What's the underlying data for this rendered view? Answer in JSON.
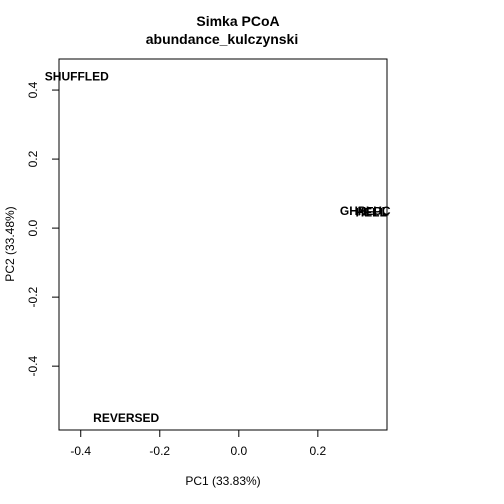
{
  "chart_data": {
    "type": "scatter",
    "title": "Simka PCoA",
    "subtitle": "abundance_kulczynski",
    "xlabel": "PC1 (33.83%)",
    "ylabel": "PC2 (33.48%)",
    "xlim": [
      -0.455,
      0.375
    ],
    "ylim": [
      -0.585,
      0.49
    ],
    "xticks": [
      -0.4,
      -0.2,
      0.0,
      0.2
    ],
    "yticks": [
      -0.4,
      -0.2,
      0.0,
      0.2,
      0.4
    ],
    "xtick_labels": [
      "-0.4",
      "-0.2",
      "0.0",
      "0.2"
    ],
    "ytick_labels": [
      "-0.4",
      "-0.2",
      "0.0",
      "0.2",
      "0.4"
    ],
    "grid": false,
    "points": [
      {
        "label": "SHUFFLED",
        "x": -0.41,
        "y": 0.44
      },
      {
        "label": "REVERSED",
        "x": -0.285,
        "y": -0.55
      },
      {
        "label": "GHPLUC",
        "x": 0.32,
        "y": 0.05
      },
      {
        "label": "HELL",
        "x": 0.335,
        "y": 0.045
      },
      {
        "label": "NFPL",
        "x": 0.34,
        "y": 0.048
      }
    ]
  }
}
